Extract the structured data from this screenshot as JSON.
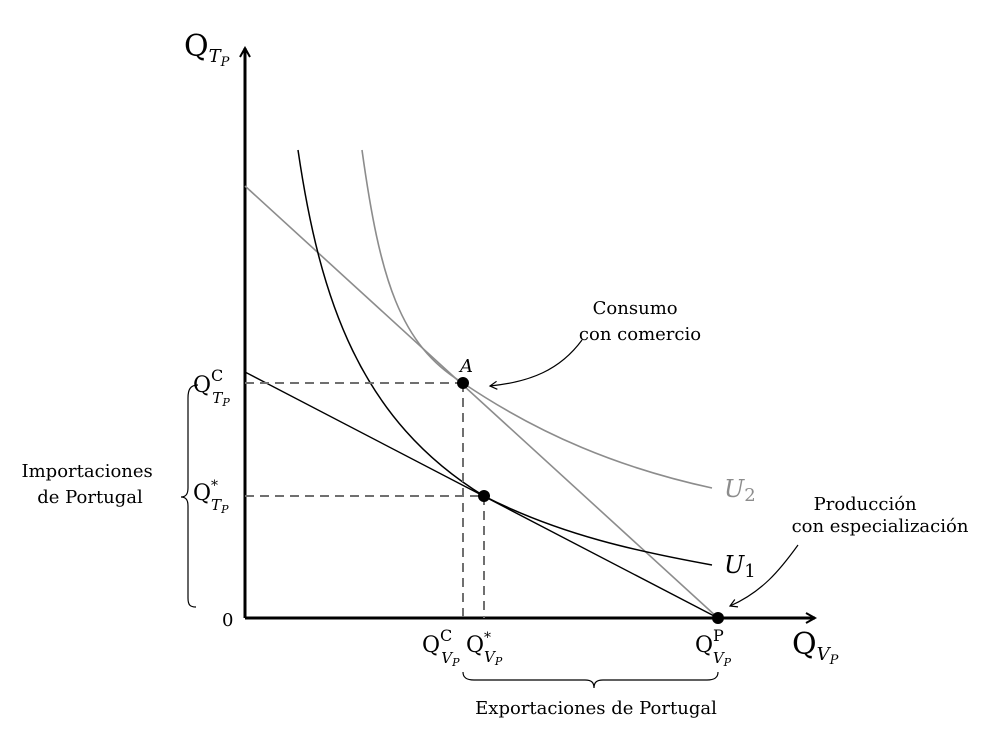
{
  "axes": {
    "y_label_main": "Q",
    "y_label_sub": "T",
    "y_label_subsub": "P",
    "x_label_main": "Q",
    "x_label_sub": "V",
    "x_label_subsub": "P",
    "origin": "0"
  },
  "points": {
    "A": "A"
  },
  "curves": {
    "u1": "U",
    "u1_index": "1",
    "u2": "U",
    "u2_index": "2"
  },
  "y_ticks": {
    "qc_main": "Q",
    "qc_sup": "C",
    "qc_sub": "T",
    "qc_subsub": "P",
    "qstar_main": "Q",
    "qstar_sup": "*",
    "qstar_sub": "T",
    "qstar_subsub": "P"
  },
  "x_ticks": {
    "qc_main": "Q",
    "qc_sup": "C",
    "qc_sub": "V",
    "qc_subsub": "P",
    "qstar_main": "Q",
    "qstar_sup": "*",
    "qstar_sub": "V",
    "qstar_subsub": "P",
    "qp_main": "Q",
    "qp_sup": "P",
    "qp_sub": "V",
    "qp_subsub": "P"
  },
  "annotations": {
    "consumo_line1": "Consumo",
    "consumo_line2": "con comercio",
    "produccion_line1": "Producción",
    "produccion_line2": "con especialización",
    "importaciones_line1": "Importaciones",
    "importaciones_line2": "de Portugal",
    "exportaciones": "Exportaciones de Portugal"
  },
  "colors": {
    "black": "#000000",
    "gray": "#8c8c8c",
    "dashed": "#6f6f6f"
  }
}
